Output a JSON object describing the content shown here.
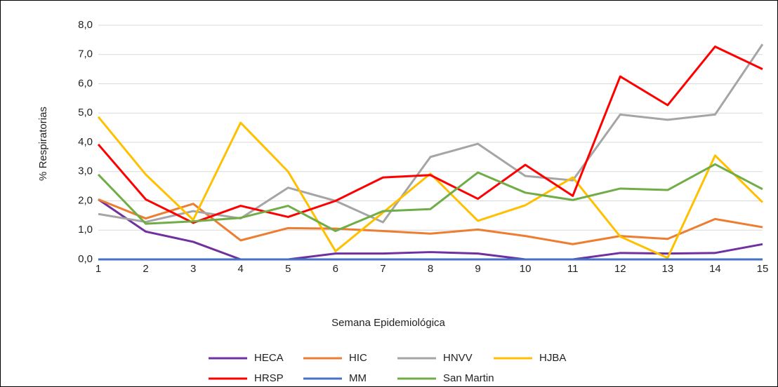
{
  "chart_data": {
    "type": "line",
    "x_label": "Semana Epidemiológica",
    "y_label": "% Respiratorias",
    "x": [
      1,
      2,
      3,
      4,
      5,
      6,
      7,
      8,
      9,
      10,
      11,
      12,
      13,
      14,
      15
    ],
    "xlim": [
      1,
      15
    ],
    "xticks": [
      1,
      2,
      3,
      4,
      5,
      6,
      7,
      8,
      9,
      10,
      11,
      12,
      13,
      14,
      15
    ],
    "ylim": [
      0,
      8
    ],
    "yticks": [
      {
        "value": 0,
        "label": "0,0"
      },
      {
        "value": 1,
        "label": "1,0"
      },
      {
        "value": 2,
        "label": "2,0"
      },
      {
        "value": 3,
        "label": "3,0"
      },
      {
        "value": 4,
        "label": "4,0"
      },
      {
        "value": 5,
        "label": "5,0"
      },
      {
        "value": 6,
        "label": "6,0"
      },
      {
        "value": 7,
        "label": "7,0"
      },
      {
        "value": 8,
        "label": "8,0"
      }
    ],
    "grid": true,
    "legend": "bottom",
    "series": [
      {
        "name": "HECA",
        "color": "#7030a0",
        "values": [
          2.05,
          0.95,
          0.6,
          0,
          0,
          0.2,
          0.2,
          0.25,
          0.2,
          0,
          0,
          0.22,
          0.2,
          0.22,
          0.52
        ]
      },
      {
        "name": "HIC",
        "color": "#ed7d31",
        "values": [
          2.05,
          1.4,
          1.9,
          0.65,
          1.07,
          1.05,
          0.97,
          0.88,
          1.02,
          0.8,
          0.52,
          0.8,
          0.7,
          1.38,
          1.1
        ]
      },
      {
        "name": "HNVV",
        "color": "#a5a5a5",
        "values": [
          1.55,
          1.28,
          1.65,
          1.4,
          2.45,
          2.0,
          1.27,
          3.5,
          3.95,
          2.85,
          2.7,
          4.95,
          4.77,
          4.95,
          7.35
        ]
      },
      {
        "name": "HJBA",
        "color": "#ffc000",
        "values": [
          4.87,
          2.9,
          1.35,
          4.67,
          3.0,
          0.28,
          1.6,
          2.93,
          1.32,
          1.85,
          2.8,
          0.78,
          0.05,
          3.55,
          1.95
        ]
      },
      {
        "name": "HRSP",
        "color": "#ff0000",
        "values": [
          3.93,
          2.05,
          1.25,
          1.83,
          1.45,
          2.0,
          2.8,
          2.88,
          2.07,
          3.23,
          2.17,
          6.25,
          5.27,
          7.27,
          6.5
        ]
      },
      {
        "name": "MM",
        "color": "#4472c4",
        "values": [
          0,
          0,
          0,
          0,
          0,
          0,
          0,
          0,
          0,
          0,
          0,
          0,
          0,
          0,
          0
        ]
      },
      {
        "name": "San Martin",
        "color": "#70ad47",
        "values": [
          2.9,
          1.22,
          1.3,
          1.42,
          1.83,
          0.97,
          1.65,
          1.72,
          2.97,
          2.28,
          2.03,
          2.42,
          2.37,
          3.25,
          2.4
        ]
      }
    ]
  }
}
